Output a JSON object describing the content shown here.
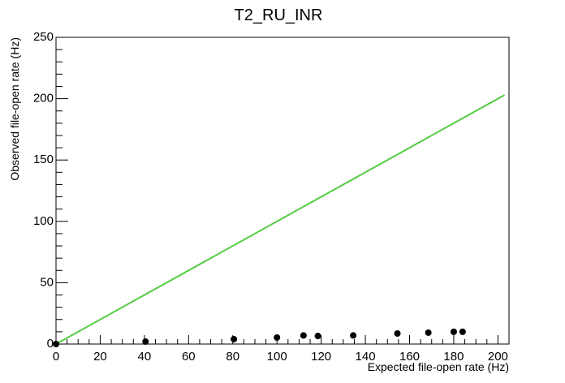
{
  "chart_data": {
    "type": "scatter",
    "title": "T2_RU_INR",
    "x_label": "Expected file-open rate (Hz)",
    "y_label": "Observed file-open rate (Hz)",
    "series": [
      {
        "type": "scatter",
        "color": "#000000",
        "x": [
          0,
          40.5,
          80.5,
          100,
          112,
          118.5,
          134.5,
          154.5,
          168.5,
          180,
          184
        ],
        "values": [
          0,
          2,
          4,
          5.3,
          7,
          6.6,
          7,
          8.6,
          9.3,
          10,
          10
        ]
      },
      {
        "type": "line",
        "color": "#55cc44",
        "x": [
          0,
          203
        ],
        "values": [
          0,
          203
        ]
      }
    ],
    "xlim": [
      0,
      205
    ],
    "ylim": [
      0,
      250
    ],
    "xticks": [
      0,
      20,
      40,
      60,
      80,
      100,
      120,
      140,
      160,
      180,
      200
    ],
    "yticks": [
      0,
      50,
      100,
      150,
      200,
      250
    ]
  }
}
